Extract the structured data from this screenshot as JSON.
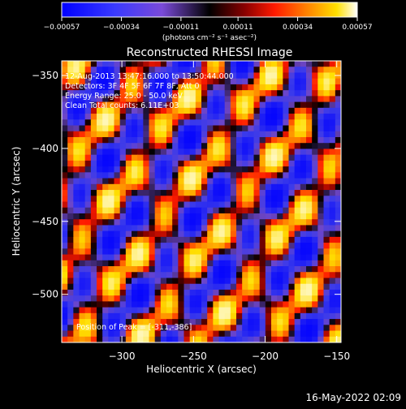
{
  "chart_data": {
    "type": "heatmap",
    "title": "Reconstructed RHESSI Image",
    "xlabel": "Heliocentric X (arcsec)",
    "ylabel": "Heliocentric Y (arcsec)",
    "xlim": [
      -342,
      -147
    ],
    "ylim": [
      -533,
      -340
    ],
    "x_ticks": [
      -300,
      -250,
      -200,
      -150
    ],
    "y_ticks": [
      -350,
      -400,
      -450,
      -500
    ],
    "colorbar": {
      "min": -0.00057,
      "max": 0.00057,
      "tick_values": [
        -0.00057,
        -0.00034,
        -0.00011,
        0.00011,
        0.00034,
        0.00057
      ],
      "tick_labels": [
        "-0.00057",
        "-0.00034",
        "-0.00011",
        "0.00011",
        "0.00034",
        "0.00057"
      ],
      "unit_label": "(photons cm⁻² s⁻¹ asec⁻²)"
    },
    "annotations": [
      "12-Aug-2013 13:47:16.000 to 13:50:44.000",
      "Detectors: 3F 4F 5F 6F 7F 8F, Att 0",
      "Energy Range: 25.0 - 50.0 keV",
      "Clean    Total counts: 6.11E+03"
    ],
    "peak_label": "Position of Peak = [-311,-386]",
    "peak": {
      "x": -311,
      "y": -386
    },
    "footer_timestamp": "16-May-2022 02:09"
  }
}
